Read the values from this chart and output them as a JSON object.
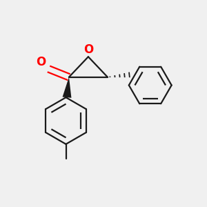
{
  "background_color": "#f0f0f0",
  "bond_color": "#1a1a1a",
  "oxygen_color": "#ff0000",
  "line_width": 1.6,
  "figsize": [
    3.0,
    3.0
  ],
  "dpi": 100,
  "xlim": [
    0.0,
    1.0
  ],
  "ylim": [
    0.05,
    1.05
  ]
}
